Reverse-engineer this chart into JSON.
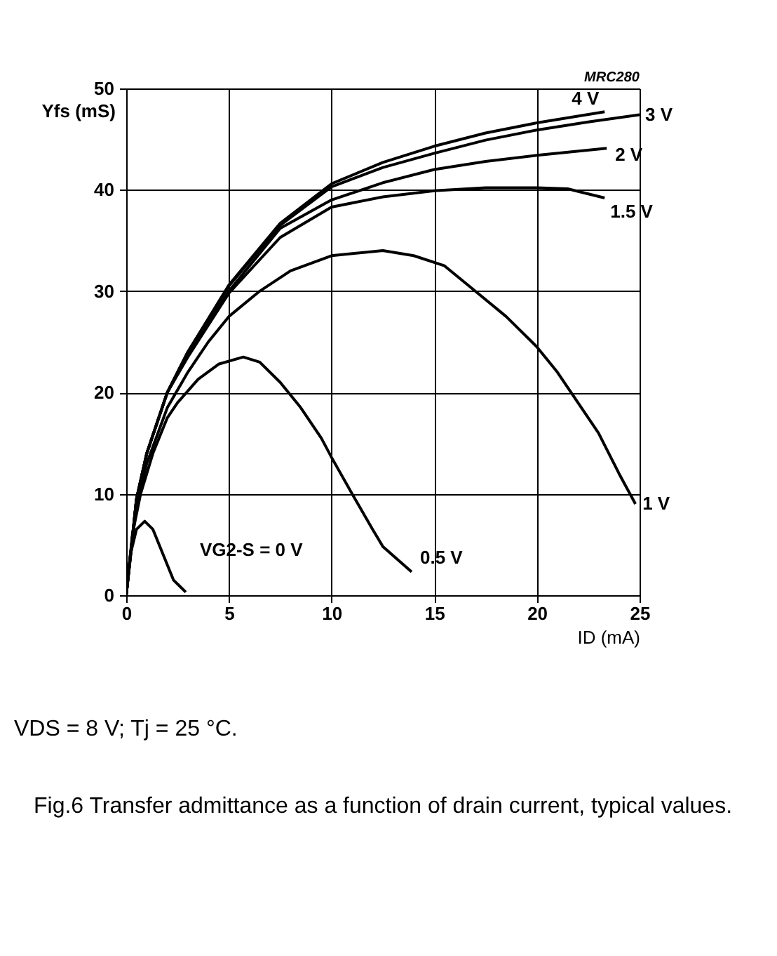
{
  "chart_data": {
    "type": "line",
    "xlabel": "ID (mA)",
    "ylabel": "Yfs (mS)",
    "xlim": [
      0,
      25
    ],
    "ylim": [
      0,
      50
    ],
    "xticks": [
      0,
      5,
      10,
      15,
      20,
      25
    ],
    "yticks": [
      0,
      10,
      20,
      30,
      40,
      50
    ],
    "grid": true,
    "legend": false,
    "marker": "none",
    "line_style": "solid",
    "series": [
      {
        "name": "VG2-S = 0 V",
        "color": "#000000",
        "x": [
          0,
          0.2,
          0.5,
          0.9,
          1.3,
          1.8,
          2.3,
          2.9
        ],
        "values": [
          0,
          4,
          6.5,
          7.3,
          6.5,
          4,
          1.5,
          0.3
        ]
      },
      {
        "name": "0.5 V",
        "color": "#000000",
        "x": [
          0,
          0.3,
          0.7,
          1.3,
          2,
          2.5,
          3.5,
          4.5,
          5.7,
          6.5,
          7.5,
          8.5,
          9.5,
          10,
          11,
          12,
          12.5,
          13.9
        ],
        "values": [
          0,
          6,
          10,
          14,
          17.5,
          19,
          21.3,
          22.8,
          23.5,
          23,
          21,
          18.5,
          15.5,
          13.6,
          10,
          6.5,
          4.8,
          2.3
        ]
      },
      {
        "name": "1 V",
        "color": "#000000",
        "x": [
          0,
          0.5,
          1,
          2,
          3,
          4,
          5,
          6.5,
          8,
          10,
          12.5,
          14,
          15.5,
          17,
          18.5,
          20,
          21,
          22,
          23,
          24,
          24.8
        ],
        "values": [
          0,
          9,
          13,
          18.5,
          22,
          25,
          27.5,
          30,
          32,
          33.5,
          34,
          33.5,
          32.5,
          30,
          27.5,
          24.5,
          22,
          19,
          16,
          12,
          9
        ]
      },
      {
        "name": "1.5 V",
        "color": "#000000",
        "x": [
          0,
          0.5,
          1,
          2,
          3,
          5,
          7.5,
          10,
          12.5,
          15,
          17.5,
          20,
          21.5,
          23.3
        ],
        "values": [
          0,
          9.5,
          14,
          20,
          23.5,
          29.8,
          35.3,
          38.3,
          39.3,
          39.9,
          40.2,
          40.2,
          40.1,
          39.2
        ]
      },
      {
        "name": "2 V",
        "color": "#000000",
        "x": [
          0,
          0.5,
          1,
          2,
          3,
          5,
          7.5,
          10,
          12.5,
          15,
          17.5,
          20,
          23.4
        ],
        "values": [
          0,
          9.5,
          14,
          20,
          23.8,
          30,
          36.2,
          39,
          40.7,
          42,
          42.8,
          43.4,
          44.1
        ]
      },
      {
        "name": "3 V",
        "color": "#000000",
        "x": [
          0,
          0.5,
          1,
          2,
          3,
          5,
          7.5,
          10,
          12.5,
          15,
          17.5,
          20,
          22.5,
          25
        ],
        "values": [
          0,
          9.5,
          14,
          20,
          24,
          30.5,
          36.5,
          40.3,
          42.2,
          43.6,
          44.9,
          45.9,
          46.7,
          47.4
        ]
      },
      {
        "name": "4 V",
        "color": "#000000",
        "x": [
          0,
          0.5,
          1,
          2,
          3,
          5,
          7.5,
          10,
          12.5,
          15,
          17.5,
          20,
          23.3
        ],
        "values": [
          0,
          9.5,
          14,
          20,
          24,
          30.6,
          36.7,
          40.6,
          42.7,
          44.3,
          45.6,
          46.6,
          47.7
        ]
      }
    ],
    "annotations": [
      "MRC280",
      "VDS = 8 V; Tj = 25 °C.",
      "Fig.6  Transfer admittance as a function of drain current, typical values."
    ]
  }
}
